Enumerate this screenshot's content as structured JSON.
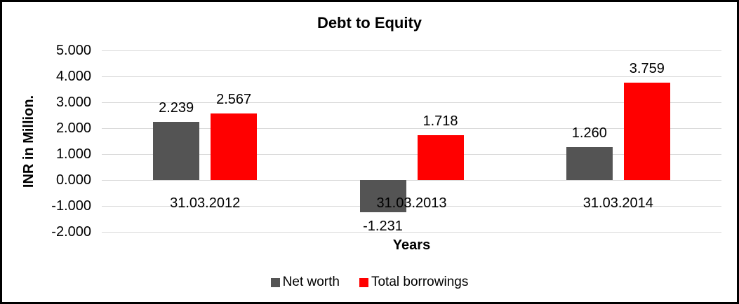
{
  "chart_data": {
    "type": "bar",
    "title": "Debt to Equity",
    "xlabel": "Years",
    "ylabel": "INR in Million.",
    "categories": [
      "31.03.2012",
      "31.03.2013",
      "31.03.2014"
    ],
    "series": [
      {
        "name": "Net worth",
        "color": "#545454",
        "values": [
          2.239,
          -1.231,
          1.26
        ],
        "labels": [
          "2.239",
          "-1.231",
          "1.260"
        ]
      },
      {
        "name": "Total borrowings",
        "color": "#ff0000",
        "values": [
          2.567,
          1.718,
          3.759
        ],
        "labels": [
          "2.567",
          "1.718",
          "3.759"
        ]
      }
    ],
    "y_axis": {
      "min": -2,
      "max": 5,
      "step": 1,
      "ticks": [
        {
          "value": 5,
          "label": "5.000"
        },
        {
          "value": 4,
          "label": "4.000"
        },
        {
          "value": 3,
          "label": "3.000"
        },
        {
          "value": 2,
          "label": "2.000"
        },
        {
          "value": 1,
          "label": "1.000"
        },
        {
          "value": 0,
          "label": "0.000"
        },
        {
          "value": -1,
          "label": "-1.000"
        },
        {
          "value": -2,
          "label": "-2.000"
        }
      ]
    },
    "grid": true,
    "gridline_color": "#d9d9d9",
    "legend_position": "bottom",
    "frame_border_color": "#000000",
    "background": "#ffffff"
  }
}
